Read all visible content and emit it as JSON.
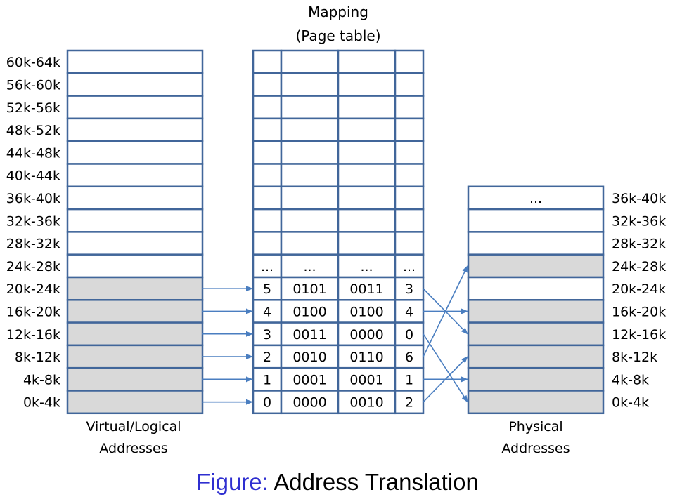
{
  "mapping_title": [
    "Mapping",
    "(Page table)"
  ],
  "virtual": {
    "caption": [
      "Virtual/Logical",
      "Addresses"
    ],
    "ranges": [
      "60k-64k",
      "56k-60k",
      "52k-56k",
      "48k-52k",
      "44k-48k",
      "40k-44k",
      "36k-40k",
      "32k-36k",
      "28k-32k",
      "24k-28k",
      "20k-24k",
      "16k-20k",
      "12k-16k",
      "8k-12k",
      "4k-8k",
      "0k-4k"
    ],
    "filled": [
      false,
      false,
      false,
      false,
      false,
      false,
      false,
      false,
      false,
      false,
      true,
      true,
      true,
      true,
      true,
      true
    ]
  },
  "page_table": {
    "rows": [
      [
        "",
        "",
        "",
        ""
      ],
      [
        "",
        "",
        "",
        ""
      ],
      [
        "",
        "",
        "",
        ""
      ],
      [
        "",
        "",
        "",
        ""
      ],
      [
        "",
        "",
        "",
        ""
      ],
      [
        "",
        "",
        "",
        ""
      ],
      [
        "",
        "",
        "",
        ""
      ],
      [
        "",
        "",
        "",
        ""
      ],
      [
        "",
        "",
        "",
        ""
      ],
      [
        "...",
        "...",
        "...",
        "..."
      ],
      [
        "5",
        "0101",
        "0011",
        "3"
      ],
      [
        "4",
        "0100",
        "0100",
        "4"
      ],
      [
        "3",
        "0011",
        "0000",
        "0"
      ],
      [
        "2",
        "0010",
        "0110",
        "6"
      ],
      [
        "1",
        "0001",
        "0001",
        "1"
      ],
      [
        "0",
        "0000",
        "0010",
        "2"
      ]
    ]
  },
  "physical": {
    "caption": [
      "Physical",
      "Addresses"
    ],
    "ranges": [
      "36k-40k",
      "32k-36k",
      "28k-32k",
      "24k-28k",
      "20k-24k",
      "16k-20k",
      "12k-16k",
      "8k-12k",
      "4k-8k",
      "0k-4k"
    ],
    "filled": [
      false,
      false,
      false,
      true,
      false,
      true,
      true,
      true,
      true,
      true
    ],
    "top_cell_text": "..."
  },
  "virtual_to_table_rows": [
    10,
    11,
    12,
    13,
    14,
    15
  ],
  "frame_mappings": [
    {
      "page": 5,
      "frame": 3
    },
    {
      "page": 4,
      "frame": 4
    },
    {
      "page": 3,
      "frame": 0
    },
    {
      "page": 2,
      "frame": 6
    },
    {
      "page": 1,
      "frame": 1
    },
    {
      "page": 0,
      "frame": 2
    }
  ],
  "colors": {
    "border": "#41669a",
    "fill": "#d9d9d9",
    "arrow": "#4a7ec0",
    "caption_prefix": "#2f2fd0"
  },
  "caption": {
    "prefix": "Figure:",
    "text": "Address Translation"
  }
}
